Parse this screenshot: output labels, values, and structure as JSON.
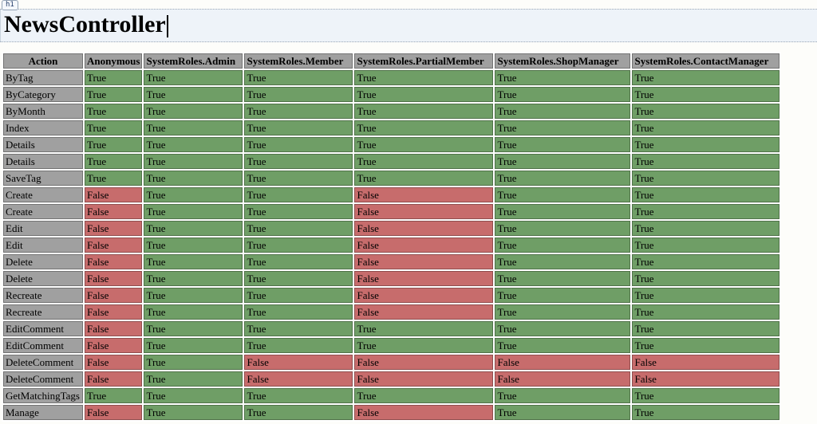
{
  "editor": {
    "tag_badge": "h1",
    "title": "NewsController"
  },
  "table": {
    "columns": [
      "Action",
      "Anonymous",
      "SystemRoles.Admin",
      "SystemRoles.Member",
      "SystemRoles.PartialMember",
      "SystemRoles.ShopManager",
      "SystemRoles.ContactManager"
    ],
    "rows": [
      {
        "action": "ByTag",
        "values": [
          "True",
          "True",
          "True",
          "True",
          "True",
          "True"
        ]
      },
      {
        "action": "ByCategory",
        "values": [
          "True",
          "True",
          "True",
          "True",
          "True",
          "True"
        ]
      },
      {
        "action": "ByMonth",
        "values": [
          "True",
          "True",
          "True",
          "True",
          "True",
          "True"
        ]
      },
      {
        "action": "Index",
        "values": [
          "True",
          "True",
          "True",
          "True",
          "True",
          "True"
        ]
      },
      {
        "action": "Details",
        "values": [
          "True",
          "True",
          "True",
          "True",
          "True",
          "True"
        ]
      },
      {
        "action": "Details",
        "values": [
          "True",
          "True",
          "True",
          "True",
          "True",
          "True"
        ]
      },
      {
        "action": "SaveTag",
        "values": [
          "True",
          "True",
          "True",
          "True",
          "True",
          "True"
        ]
      },
      {
        "action": "Create",
        "values": [
          "False",
          "True",
          "True",
          "False",
          "True",
          "True"
        ]
      },
      {
        "action": "Create",
        "values": [
          "False",
          "True",
          "True",
          "False",
          "True",
          "True"
        ]
      },
      {
        "action": "Edit",
        "values": [
          "False",
          "True",
          "True",
          "False",
          "True",
          "True"
        ]
      },
      {
        "action": "Edit",
        "values": [
          "False",
          "True",
          "True",
          "False",
          "True",
          "True"
        ]
      },
      {
        "action": "Delete",
        "values": [
          "False",
          "True",
          "True",
          "False",
          "True",
          "True"
        ]
      },
      {
        "action": "Delete",
        "values": [
          "False",
          "True",
          "True",
          "False",
          "True",
          "True"
        ]
      },
      {
        "action": "Recreate",
        "values": [
          "False",
          "True",
          "True",
          "False",
          "True",
          "True"
        ]
      },
      {
        "action": "Recreate",
        "values": [
          "False",
          "True",
          "True",
          "False",
          "True",
          "True"
        ]
      },
      {
        "action": "EditComment",
        "values": [
          "False",
          "True",
          "True",
          "True",
          "True",
          "True"
        ]
      },
      {
        "action": "EditComment",
        "values": [
          "False",
          "True",
          "True",
          "True",
          "True",
          "True"
        ]
      },
      {
        "action": "DeleteComment",
        "values": [
          "False",
          "True",
          "False",
          "False",
          "False",
          "False"
        ]
      },
      {
        "action": "DeleteComment",
        "values": [
          "False",
          "True",
          "False",
          "False",
          "False",
          "False"
        ]
      },
      {
        "action": "GetMatchingTags",
        "values": [
          "True",
          "True",
          "True",
          "True",
          "True",
          "True"
        ]
      },
      {
        "action": "Manage",
        "values": [
          "False",
          "True",
          "True",
          "False",
          "True",
          "True"
        ]
      }
    ]
  },
  "colors": {
    "true_bg": "#6f9e66",
    "false_bg": "#c76c6c",
    "header_bg": "#a0a0a0",
    "heading_bg": "#eef3f9",
    "page_bg": "#fdfdfa"
  }
}
